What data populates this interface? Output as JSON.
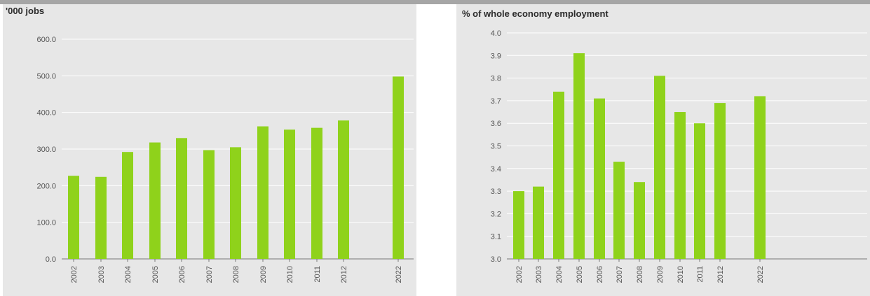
{
  "colors": {
    "bar": "#8fd21b",
    "panel_bg": "#e7e7e7",
    "gridline": "#ffffff",
    "axis": "#777777"
  },
  "chart_data": [
    {
      "type": "bar",
      "title": "'000 jobs",
      "categories": [
        "2002",
        "2003",
        "2004",
        "2005",
        "2006",
        "2007",
        "2008",
        "2009",
        "2010",
        "2011",
        "2012",
        "2022"
      ],
      "values": [
        227,
        224,
        292,
        318,
        330,
        297,
        305,
        362,
        353,
        358,
        378,
        498
      ],
      "ylim": [
        0,
        600
      ],
      "yticks": [
        "0.0",
        "100.0",
        "200.0",
        "300.0",
        "400.0",
        "500.0",
        "600.0"
      ],
      "grid": true
    },
    {
      "type": "bar",
      "title": "% of whole economy employment",
      "categories": [
        "2002",
        "2003",
        "2004",
        "2005",
        "2006",
        "2007",
        "2008",
        "2009",
        "2010",
        "2011",
        "2012",
        "2022"
      ],
      "values": [
        3.3,
        3.32,
        3.74,
        3.91,
        3.71,
        3.43,
        3.34,
        3.81,
        3.65,
        3.6,
        3.69,
        3.72
      ],
      "ylim": [
        3.0,
        4.0
      ],
      "yticks": [
        "3.0",
        "3.1",
        "3.2",
        "3.3",
        "3.4",
        "3.5",
        "3.6",
        "3.7",
        "3.8",
        "3.9",
        "4.0"
      ],
      "grid": true
    }
  ]
}
